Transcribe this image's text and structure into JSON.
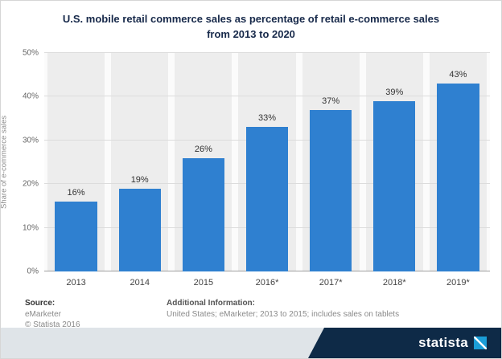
{
  "title": {
    "line1": "U.S. mobile retail commerce sales as percentage of retail e-commerce sales",
    "line2": "from 2013 to 2020"
  },
  "chart_data": {
    "type": "bar",
    "categories": [
      "2013",
      "2014",
      "2015",
      "2016*",
      "2017*",
      "2018*",
      "2019*"
    ],
    "values": [
      16,
      19,
      26,
      33,
      37,
      39,
      43
    ],
    "value_labels": [
      "16%",
      "19%",
      "26%",
      "33%",
      "37%",
      "39%",
      "43%"
    ],
    "title": "U.S. mobile retail commerce sales as percentage of retail e-commerce sales from 2013 to 2020",
    "xlabel": "",
    "ylabel": "Share of e-commerce sales",
    "ylim": [
      0,
      50
    ],
    "yticks": [
      0,
      10,
      20,
      30,
      40,
      50
    ],
    "ytick_labels": [
      "0%",
      "10%",
      "20%",
      "30%",
      "40%",
      "50%"
    ],
    "bar_color": "#2f80d0",
    "grid": true,
    "legend": "none"
  },
  "colors": {
    "title_text": "#17294a",
    "column_band": "#ededed",
    "brand_navy": "#0e2a47",
    "brand_icon_blue": "#1b9ed8"
  },
  "footer": {
    "source_label": "Source:",
    "source_lines": [
      "eMarketer",
      "© Statista 2016"
    ],
    "additional_label": "Additional Information:",
    "additional_text": "United States; eMarketer; 2013 to 2015; includes sales on tablets",
    "brand": "statista"
  }
}
